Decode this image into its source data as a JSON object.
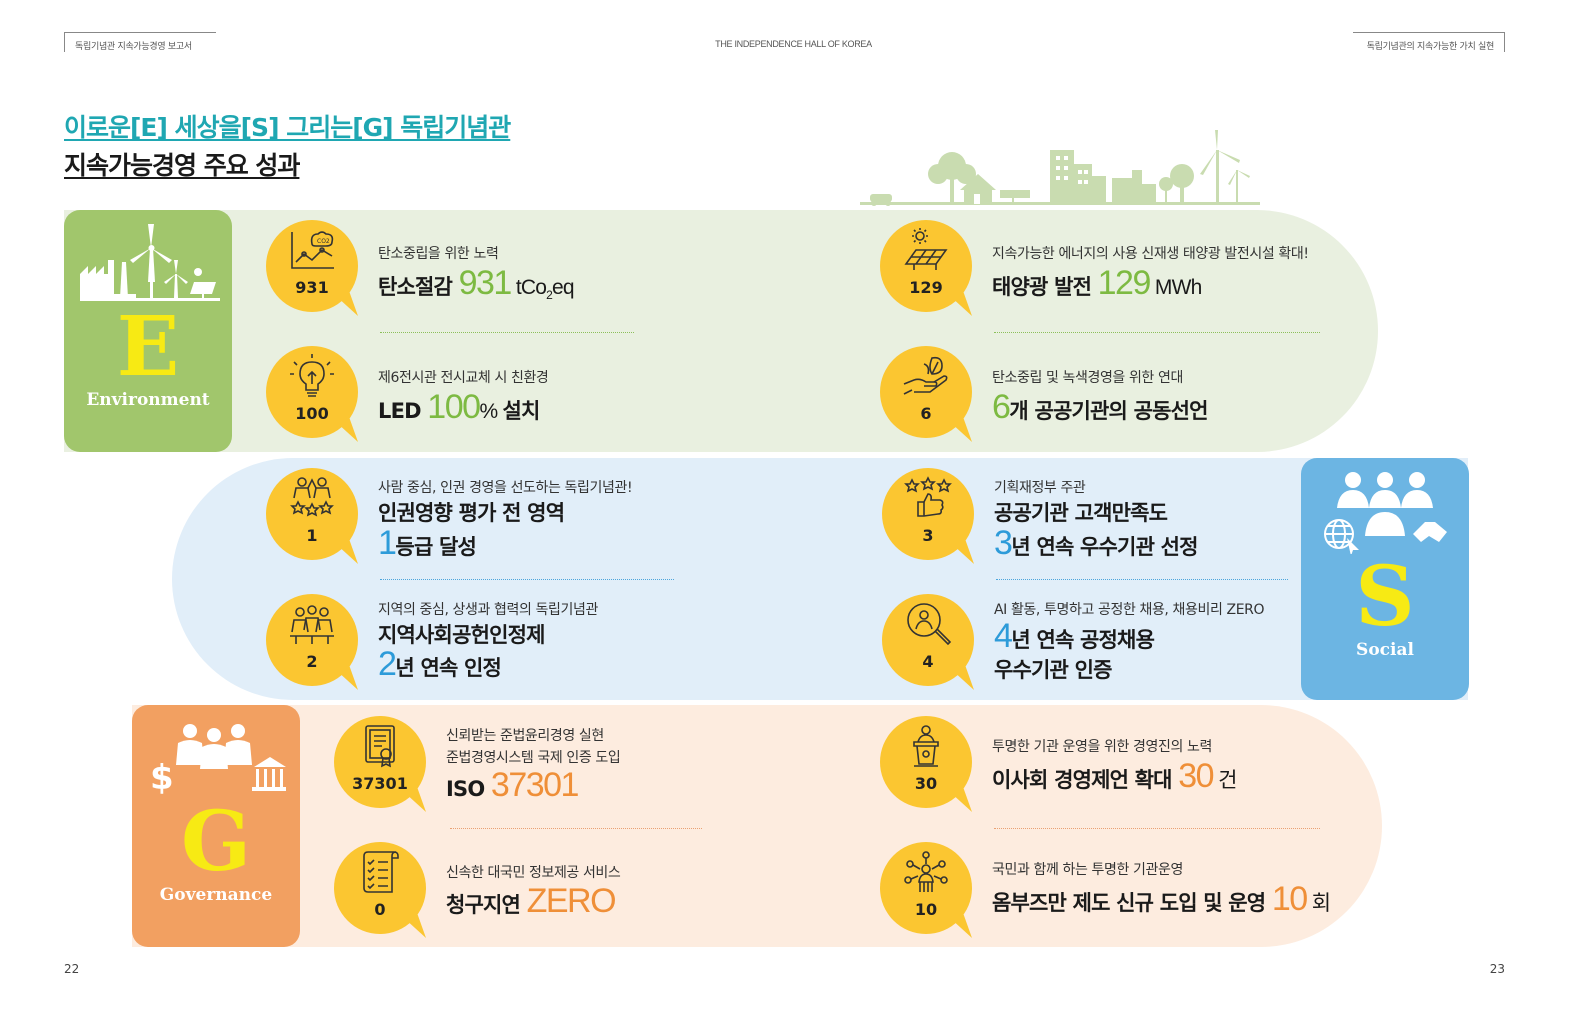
{
  "header": {
    "left": "독립기념관 지속가능경영 보고서",
    "center": "THE INDEPENDENCE HALL OF KOREA",
    "right": "독립기념관의 지속가능한 가치 실현"
  },
  "title": {
    "line1": "이로운[E] 세상을[S] 그리는[G] 독립기념관",
    "line2": "지속가능경영 주요 성과"
  },
  "categories": {
    "e": {
      "letter": "E",
      "name": "Environment",
      "color": "#a1c66c"
    },
    "s": {
      "letter": "S",
      "name": "Social",
      "color": "#6cb5e3"
    },
    "g": {
      "letter": "G",
      "name": "Governance",
      "color": "#f2a061"
    }
  },
  "accent": {
    "bubble": "#fbc631",
    "green": "#7dba42",
    "blue": "#2d9bd9",
    "orange": "#ef8f38"
  },
  "items": {
    "e1": {
      "icon": "co2-chart-icon",
      "num": "931",
      "sub": "탄소중립을 위한 노력",
      "pre": "탄소절감 ",
      "val": "931",
      "unit": "tCo",
      "unit_sub": "2",
      "unit_post": "eq"
    },
    "e2": {
      "icon": "solar-panel-icon",
      "num": "129",
      "sub": "지속가능한 에너지의 사용 신재생 태양광 발전시설 확대!",
      "pre": "태양광 발전 ",
      "val": "129",
      "unit": "MWh"
    },
    "e3": {
      "icon": "lightbulb-icon",
      "num": "100",
      "sub": "제6전시관 전시교체 시 친환경",
      "pre": "LED ",
      "val": "100",
      "unit": "% ",
      "post": "설치"
    },
    "e4": {
      "icon": "hand-leaf-icon",
      "num": "6",
      "sub": "탄소중립 및 녹색경영을 위한 연대",
      "val": "6",
      "post": "개 공공기관의 공동선언"
    },
    "s1": {
      "icon": "people-stars-icon",
      "num": "1",
      "sub": "사람 중심, 인권 경영을 선도하는 독립기념관!",
      "line1": "인권영향 평가 전 영역",
      "val": "1",
      "post": "등급 달성"
    },
    "s2": {
      "icon": "thumbs-up-stars-icon",
      "num": "3",
      "sub": "기획재정부 주관",
      "line1": "공공기관 고객만족도",
      "val": "3",
      "post": "년 연속 우수기관 선정"
    },
    "s3": {
      "icon": "community-icon",
      "num": "2",
      "sub": "지역의 중심, 상생과 협력의 독립기념관",
      "line1": "지역사회공헌인정제",
      "val": "2",
      "post": "년 연속 인정"
    },
    "s4": {
      "icon": "magnifier-person-icon",
      "num": "4",
      "sub": "AI 활동, 투명하고 공정한 채용, 채용비리 ZERO",
      "val": "4",
      "post": "년 연속 공정채용",
      "line2": "우수기관  인증"
    },
    "g1": {
      "icon": "certificate-icon",
      "num": "37301",
      "sub": "신뢰받는 준법윤리경영 실현",
      "sub2": "준법경영시스템 국제 인증 도입",
      "pre": "ISO ",
      "val": "37301"
    },
    "g2": {
      "icon": "podium-speaker-icon",
      "num": "30",
      "sub": "투명한 기관 운영을 위한 경영진의 노력",
      "pre": "이사회 경영제언 확대 ",
      "val": "30",
      "unit": "건"
    },
    "g3": {
      "icon": "checklist-icon",
      "num": "0",
      "sub": "신속한 대국민 정보제공 서비스",
      "pre": "청구지연 ",
      "val": "ZERO"
    },
    "g4": {
      "icon": "network-person-icon",
      "num": "10",
      "sub": "국민과 함께 하는 투명한 기관운영",
      "pre": "옴부즈만 제도 신규 도입 및 운영 ",
      "val": "10",
      "unit": "회"
    }
  },
  "pages": {
    "left": "22",
    "right": "23"
  }
}
